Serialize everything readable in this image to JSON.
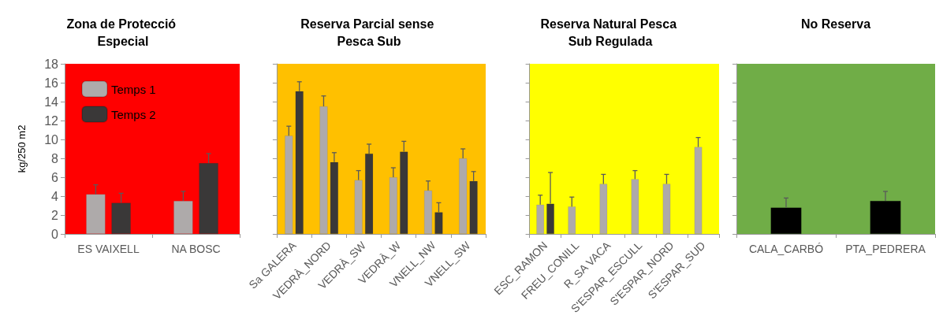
{
  "chart_data": [
    {
      "type": "bar",
      "title": "Zona de Protecció Especial",
      "ylabel": "kg/250 m2",
      "categories": [
        "ES VAIXELL",
        "NA BOSC"
      ],
      "ylim": [
        0,
        18
      ],
      "yticks": [
        0,
        2,
        4,
        6,
        8,
        10,
        12,
        14,
        16,
        18
      ],
      "grid": false,
      "legend": "top left",
      "bands": [
        {
          "axis": "y",
          "from": 0,
          "to": 18,
          "color": "#ff0000"
        }
      ],
      "series": [
        {
          "name": "Temps 1",
          "color": "#aeaaaa",
          "values": [
            4.2,
            3.5
          ],
          "errors": [
            [
              4.2,
              5.2
            ],
            [
              3.5,
              4.5
            ]
          ]
        },
        {
          "name": "Temps 2",
          "color": "#3a3838",
          "values": [
            3.3,
            7.5
          ],
          "errors": [
            [
              3.3,
              4.3
            ],
            [
              7.5,
              8.5
            ]
          ]
        }
      ]
    },
    {
      "type": "bar",
      "title": "Reserva Parcial sense Pesca Sub",
      "categories": [
        "Sa GALERA",
        "VEDRÀ_NORD",
        "VEDRÀ_SW",
        "VEDRÀ_W",
        "VNELL_NW",
        "VNELL_SW"
      ],
      "ylim": [
        0,
        18
      ],
      "yticks": [
        0,
        2,
        4,
        6,
        8,
        10,
        12,
        14,
        16,
        18
      ],
      "tick_labels": "x",
      "grid": false,
      "legend": false,
      "bands": [
        {
          "axis": "y",
          "from": 0,
          "to": 18,
          "color": "#ffc000"
        }
      ],
      "series": [
        {
          "color": "#aeaaaa",
          "values": [
            10.4,
            13.5,
            5.7,
            6.0,
            4.6,
            8.0
          ],
          "errors": [
            [
              10.4,
              11.4
            ],
            [
              13.5,
              14.6
            ],
            [
              5.7,
              6.7
            ],
            [
              6.0,
              7.0
            ],
            [
              4.6,
              5.6
            ],
            [
              8.0,
              9.0
            ]
          ]
        },
        {
          "color": "#3a3838",
          "values": [
            15.1,
            7.6,
            8.5,
            8.7,
            2.3,
            5.6
          ],
          "errors": [
            [
              15.1,
              16.1
            ],
            [
              7.6,
              8.6
            ],
            [
              8.5,
              9.5
            ],
            [
              8.7,
              9.8
            ],
            [
              2.3,
              3.3
            ],
            [
              5.6,
              6.6
            ]
          ]
        }
      ]
    },
    {
      "type": "bar",
      "title": "Reserva Natural Pesca Sub Regulada",
      "categories": [
        "ESC_RAMON",
        "FREU_CONILL",
        "R_SA VACA",
        "S'ESPAR_ESCULL",
        "S'ESPAR_NORD",
        "S'ESPAR_SUD"
      ],
      "ylim": [
        0,
        18
      ],
      "yticks": [
        0,
        2,
        4,
        6,
        8,
        10,
        12,
        14,
        16,
        18
      ],
      "tick_labels": "x",
      "grid": false,
      "legend": false,
      "bands": [
        {
          "axis": "y",
          "from": 0,
          "to": 18,
          "color": "#ffff00"
        }
      ],
      "series": [
        {
          "color": "#aeaaaa",
          "values": [
            3.1,
            2.9,
            5.3,
            5.8,
            5.3,
            9.2
          ],
          "errors": [
            [
              3.1,
              4.1
            ],
            [
              2.9,
              3.9
            ],
            [
              5.3,
              6.3
            ],
            [
              5.8,
              6.7
            ],
            [
              5.3,
              6.3
            ],
            [
              9.2,
              10.2
            ]
          ]
        },
        {
          "color": "#3a3838",
          "values": [
            3.2,
            null,
            null,
            null,
            null,
            null
          ],
          "errors": [
            [
              3.2,
              6.5
            ],
            null,
            null,
            null,
            null,
            null
          ]
        }
      ]
    },
    {
      "type": "bar",
      "title": "No Reserva",
      "categories": [
        "CALA_CARBÓ",
        "PTA_PEDRERA"
      ],
      "ylim": [
        0,
        18
      ],
      "yticks": [
        0,
        2,
        4,
        6,
        8,
        10,
        12,
        14,
        16,
        18
      ],
      "tick_labels": "x",
      "grid": false,
      "legend": false,
      "bands": [
        {
          "axis": "y",
          "from": 0,
          "to": 18,
          "color": "#70ad47"
        }
      ],
      "series": [
        {
          "color": "#000000",
          "values": [
            2.8,
            3.5
          ],
          "errors": [
            [
              2.8,
              3.8
            ],
            [
              3.5,
              4.5
            ]
          ]
        }
      ]
    }
  ]
}
